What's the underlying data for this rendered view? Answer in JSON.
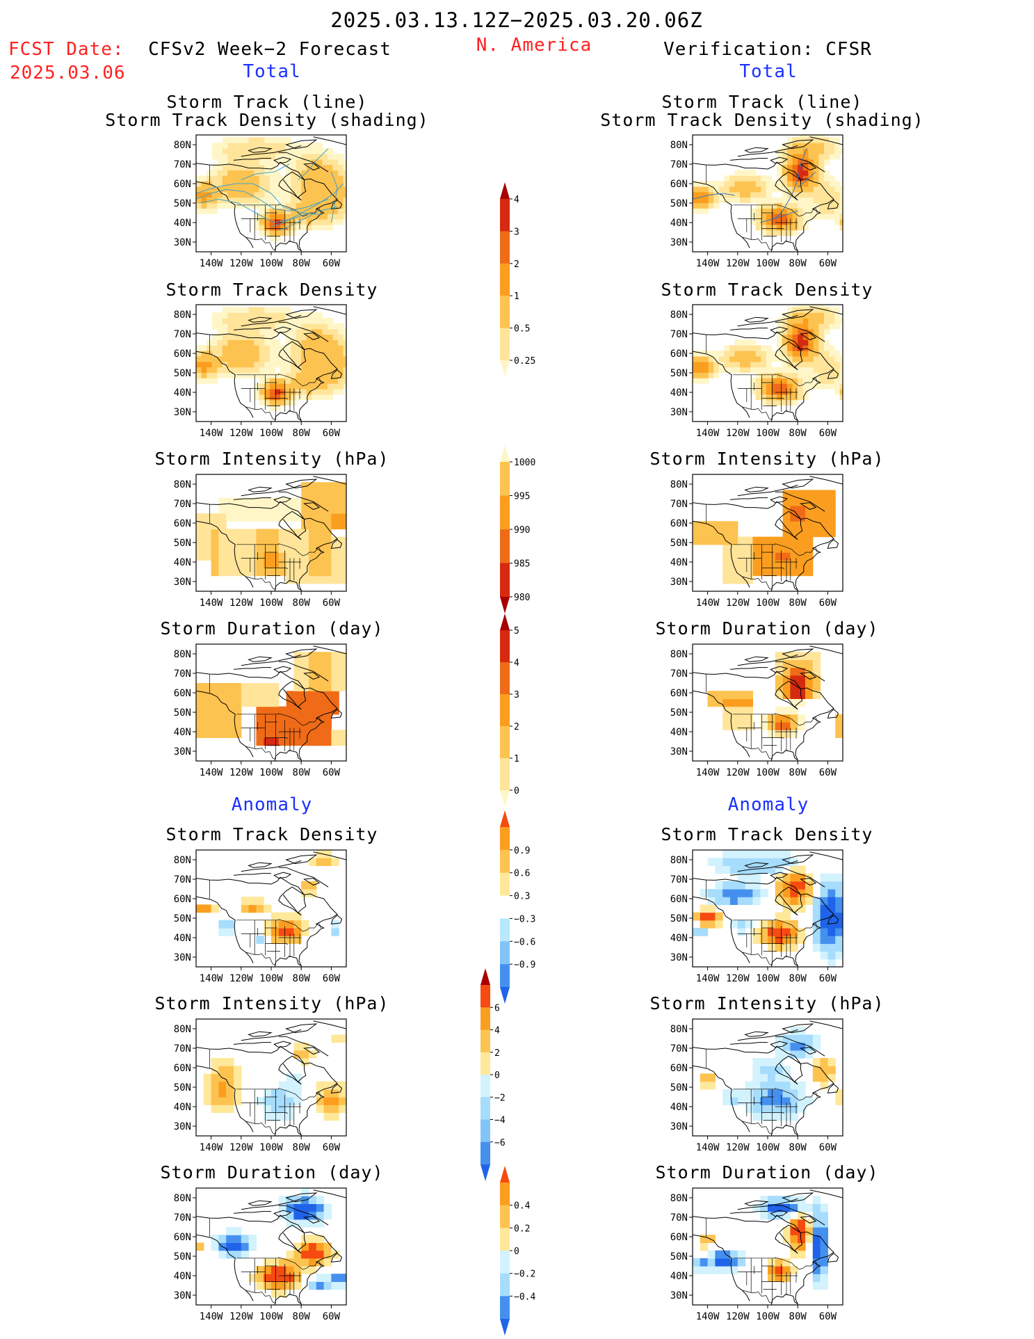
{
  "header": {
    "period": "2025.03.13.12Z−2025.03.20.06Z",
    "fcst_label": "FCST Date:",
    "fcst_date": "2025.03.06",
    "region": "N. America",
    "left_title": "CFSv2 Week−2 Forecast",
    "right_title": "Verification: CFSR",
    "total_label": "Total",
    "anomaly_label": "Anomaly"
  },
  "titles": {
    "track_line": "Storm Track (line)",
    "track_density_shading": "Storm Track Density (shading)",
    "track_density": "Storm Track Density",
    "intensity": "Storm Intensity (hPa)",
    "duration": "Storm Duration (day)"
  },
  "axes": {
    "lat_labels": [
      "80N",
      "70N",
      "60N",
      "50N",
      "40N",
      "30N"
    ],
    "lon_labels": [
      "140W",
      "120W",
      "100W",
      "80W",
      "60W"
    ]
  },
  "colorbars": {
    "density_total": {
      "labels": [
        "4",
        "3",
        "2",
        "1",
        "0.5",
        "0.25"
      ],
      "colors": [
        "#a80000",
        "#d52a10",
        "#ef6b18",
        "#fb9e20",
        "#fdc350",
        "#ffe49a",
        "#fff6c8"
      ]
    },
    "intensity_total": {
      "labels": [
        "1000",
        "995",
        "990",
        "985",
        "980"
      ],
      "colors": [
        "#fff6c8",
        "#fdc350",
        "#fb9e20",
        "#ef6b18",
        "#d52a10",
        "#a80000"
      ]
    },
    "duration_total": {
      "labels": [
        "5",
        "4",
        "3",
        "2",
        "1",
        "0"
      ],
      "colors": [
        "#a80000",
        "#d52a10",
        "#ef6b18",
        "#fb9e20",
        "#fdc350",
        "#ffe49a",
        "#fff6c8"
      ]
    },
    "density_anom": {
      "labels": [
        "0.9",
        "0.6",
        "0.3",
        "−0.3",
        "−0.6",
        "−0.9"
      ],
      "colors": [
        "#f54a10",
        "#fb9e20",
        "#fdc350",
        "#ffe89a",
        "#ffffff",
        "#b8e8fc",
        "#82c4f8",
        "#4590ef",
        "#1f64e8"
      ]
    },
    "intensity_anom": {
      "labels": [
        "6",
        "4",
        "2",
        "0",
        "−2",
        "−4",
        "−6"
      ],
      "colors": [
        "#a80000",
        "#f54a10",
        "#fb9e20",
        "#fdc350",
        "#ffe89a",
        "#d2f2fe",
        "#a6dcfc",
        "#82c4f8",
        "#4590ef",
        "#1f64e8"
      ]
    },
    "duration_anom": {
      "labels": [
        "0.4",
        "0.2",
        "0",
        "−0.2",
        "−0.4"
      ],
      "colors": [
        "#f54a10",
        "#fb9e20",
        "#fdc350",
        "#ffe89a",
        "#d2f2fe",
        "#a6dcfc",
        "#4590ef",
        "#1f64e8"
      ]
    }
  },
  "panels": [
    {
      "id": "p1L",
      "title_key": "track_shading",
      "scheme": "dens_fcst"
    },
    {
      "id": "p1R",
      "title_key": "track_shading",
      "scheme": "dens_obs"
    },
    {
      "id": "p2L",
      "title_key": "track_density",
      "scheme": "dens_fcst"
    },
    {
      "id": "p2R",
      "title_key": "track_density",
      "scheme": "dens_obs"
    },
    {
      "id": "p3L",
      "title_key": "intensity",
      "scheme": "int_fcst"
    },
    {
      "id": "p3R",
      "title_key": "intensity",
      "scheme": "int_obs"
    },
    {
      "id": "p4L",
      "title_key": "duration",
      "scheme": "dur_fcst"
    },
    {
      "id": "p4R",
      "title_key": "duration",
      "scheme": "dur_obs"
    },
    {
      "id": "p5L",
      "title_key": "track_density",
      "scheme": "adens_fcst"
    },
    {
      "id": "p5R",
      "title_key": "track_density",
      "scheme": "adens_obs"
    },
    {
      "id": "p6L",
      "title_key": "intensity",
      "scheme": "aint_fcst"
    },
    {
      "id": "p6R",
      "title_key": "intensity",
      "scheme": "aint_obs"
    },
    {
      "id": "p7L",
      "title_key": "duration",
      "scheme": "adur_fcst"
    },
    {
      "id": "p7R",
      "title_key": "duration",
      "scheme": "adur_obs"
    }
  ]
}
